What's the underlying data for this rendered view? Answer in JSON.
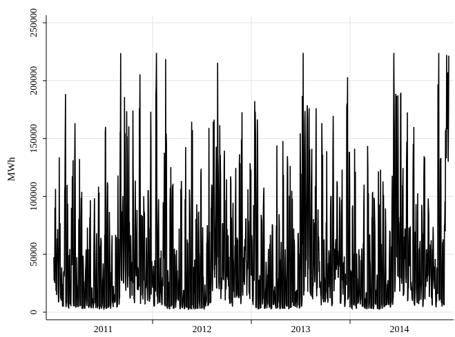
{
  "chart_data": {
    "type": "line",
    "title": "",
    "xlabel": "",
    "ylabel": "MWh",
    "ylim": [
      0,
      250000
    ],
    "yticks": [
      0,
      50000,
      100000,
      150000,
      200000,
      250000
    ],
    "ytick_labels": [
      "0",
      "50000",
      "100000",
      "150000",
      "200000",
      "250000"
    ],
    "xlim": [
      "2011-01-01",
      "2014-12-31"
    ],
    "year_labels": [
      "2011",
      "2012",
      "2013",
      "2014"
    ],
    "grid": true,
    "series": [
      {
        "color": "#000000",
        "weekly_index": [
          1,
          4,
          8,
          12,
          16,
          20,
          24,
          28,
          32,
          36,
          40,
          44,
          48,
          52,
          56,
          60,
          64,
          68,
          72,
          76,
          80,
          84,
          88,
          92,
          96,
          100,
          104,
          108,
          112,
          116,
          120,
          124,
          128,
          132,
          136,
          140,
          144,
          148,
          152,
          156,
          160,
          164,
          168,
          172,
          176,
          180,
          184,
          188,
          192,
          196,
          200,
          204,
          208,
          212,
          216,
          220,
          224,
          228,
          232,
          236,
          240,
          244,
          248,
          252,
          256,
          260,
          264,
          268,
          272,
          276,
          280,
          284,
          288,
          292,
          296,
          300,
          304,
          308,
          312,
          316,
          320,
          324,
          328,
          332,
          336,
          340,
          344,
          348,
          352,
          356,
          360,
          364
        ],
        "dates_note": "",
        "values": [
          48000,
          82000,
          30000,
          68000,
          12000,
          86000,
          25000,
          32000,
          8000,
          30000,
          155000,
          10000,
          95000,
          8000,
          45000,
          12000,
          62000,
          118000,
          7000,
          140000,
          5000,
          30000,
          6000,
          84000,
          10000,
          90000,
          5000,
          48000,
          8000,
          45000,
          10000,
          60000,
          5000,
          95000,
          7000,
          18000,
          5000,
          120000,
          8000,
          60000,
          4000,
          90000,
          6000,
          133000,
          7000,
          40000,
          5000,
          126000,
          5000,
          92000,
          6000,
          100000,
          8000,
          60000,
          7000,
          20000,
          8000,
          62000,
          8000,
          100000,
          12000,
          152000,
          40000,
          153000,
          60000,
          168000,
          45000,
          175000,
          30000,
          130000,
          25000,
          62000,
          40000,
          150000,
          22000,
          80000,
          60000,
          30000,
          15000,
          146000,
          12000,
          60000,
          20000,
          88000,
          14000,
          50000,
          20000,
          100000,
          12000,
          118000,
          30000,
          50000
        ]
      }
    ]
  }
}
